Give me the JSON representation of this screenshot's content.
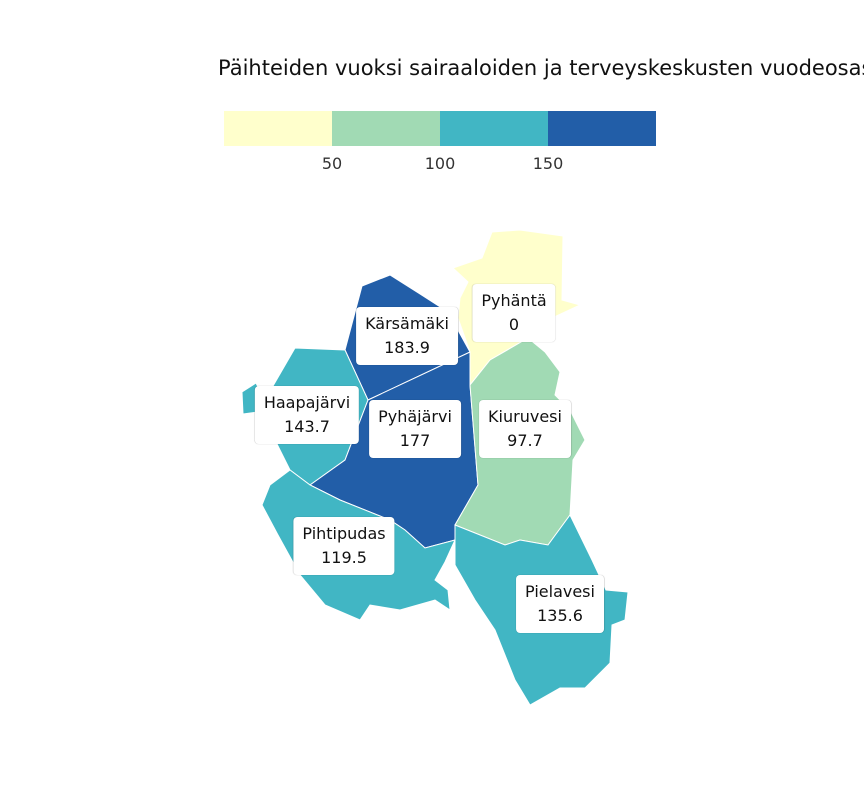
{
  "title": "Päihteiden vuoksi sairaaloiden ja terveyskeskusten vuodeosas",
  "legend": {
    "colors": [
      "#ffffcc",
      "#a1dab4",
      "#41b6c4",
      "#225ea8"
    ],
    "ticks": [
      "50",
      "100",
      "150"
    ]
  },
  "municipalities": [
    {
      "id": "pyhanta",
      "name": "Pyhäntä",
      "value": "0",
      "color": "#ffffcc"
    },
    {
      "id": "karsamaki",
      "name": "Kärsämäki",
      "value": "183.9",
      "color": "#225ea8"
    },
    {
      "id": "haapajarvi",
      "name": "Haapajärvi",
      "value": "143.7",
      "color": "#41b6c4"
    },
    {
      "id": "pyhajarvi",
      "name": "Pyhäjärvi",
      "value": "177",
      "color": "#225ea8"
    },
    {
      "id": "kiuruvesi",
      "name": "Kiuruvesi",
      "value": "97.7",
      "color": "#a1dab4"
    },
    {
      "id": "pihtipudas",
      "name": "Pihtipudas",
      "value": "119.5",
      "color": "#41b6c4"
    },
    {
      "id": "pielavesi",
      "name": "Pielavesi",
      "value": "135.6",
      "color": "#41b6c4"
    }
  ]
}
